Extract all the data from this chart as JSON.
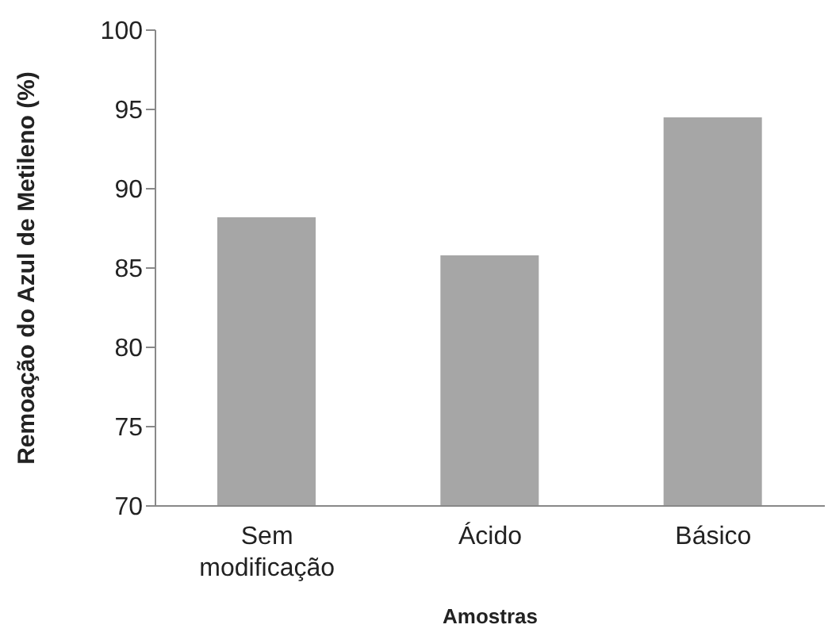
{
  "chart_data": {
    "type": "bar",
    "xlabel": "Amostras",
    "ylabel": "Remoação do Azul de Metileno (%)",
    "categories": [
      "Sem modificação",
      "Ácido",
      "Básico"
    ],
    "values": [
      88.2,
      85.8,
      94.5
    ],
    "color": "#a6a6a6",
    "ylim": [
      70,
      100
    ],
    "yticks": [
      70,
      75,
      80,
      85,
      90,
      95,
      100
    ],
    "grid": false,
    "legend": false
  }
}
